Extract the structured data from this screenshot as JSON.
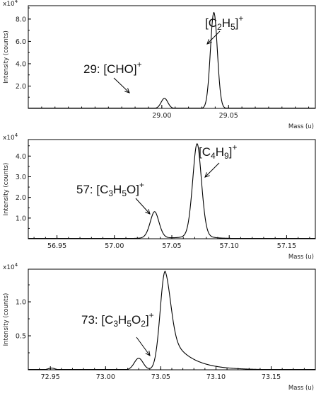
{
  "chart_data": [
    {
      "type": "line",
      "ylabel": "Intensity (counts)",
      "xlabel": "Mass (u)",
      "y_multiplier": "x10",
      "y_multiplier_exp": "4",
      "xlim": [
        28.9,
        29.115
      ],
      "ylim": [
        0,
        9.2
      ],
      "x_ticks": [
        29.0,
        29.05
      ],
      "x_tick_labels": [
        "29.00",
        "29.05"
      ],
      "y_ticks": [
        2.0,
        4.0,
        6.0,
        8.0
      ],
      "y_tick_labels": [
        "2.0",
        "4.0",
        "6.0",
        "8.0"
      ],
      "peaks": [
        {
          "x": 29.002,
          "y": 0.9,
          "width": 0.0025,
          "label_prefix": "29: ",
          "label_parts": [
            [
              "[CHO]",
              ""
            ],
            [
              "+",
              "sup"
            ]
          ]
        },
        {
          "x": 29.039,
          "y": 8.6,
          "width": 0.0026,
          "label_prefix": "",
          "label_parts": [
            [
              "[C",
              ""
            ],
            [
              "2",
              "sub"
            ],
            [
              "H",
              ""
            ],
            [
              "5",
              "sub"
            ],
            [
              "]",
              ""
            ],
            [
              "+",
              "sup"
            ]
          ]
        }
      ]
    },
    {
      "type": "line",
      "ylabel": "Intensity (counts)",
      "xlabel": "Mass (u)",
      "y_multiplier": "x10",
      "y_multiplier_exp": "4",
      "xlim": [
        56.925,
        57.175
      ],
      "ylim": [
        0,
        4.8
      ],
      "x_ticks": [
        56.95,
        57.0,
        57.05,
        57.1,
        57.15
      ],
      "x_tick_labels": [
        "56.95",
        "57.00",
        "57.05",
        "57.10",
        "57.15"
      ],
      "y_ticks": [
        1.0,
        2.0,
        3.0,
        4.0
      ],
      "y_tick_labels": [
        "1.0",
        "2.0",
        "3.0",
        "4.0"
      ],
      "peaks": [
        {
          "x": 57.035,
          "y": 1.3,
          "width": 0.004,
          "label_prefix": "57: ",
          "label_parts": [
            [
              "[C",
              ""
            ],
            [
              "3",
              "sub"
            ],
            [
              "H",
              ""
            ],
            [
              "5",
              "sub"
            ],
            [
              "O]",
              ""
            ],
            [
              "+",
              "sup"
            ]
          ]
        },
        {
          "x": 57.072,
          "y": 4.6,
          "width": 0.004,
          "label_prefix": "",
          "label_parts": [
            [
              "[C",
              ""
            ],
            [
              "4",
              "sub"
            ],
            [
              "H",
              ""
            ],
            [
              "9",
              "sub"
            ],
            [
              "]",
              ""
            ],
            [
              "+",
              "sup"
            ]
          ]
        }
      ]
    },
    {
      "type": "line",
      "ylabel": "Intensity (counts)",
      "xlabel": "Mass (u)",
      "y_multiplier": "x10",
      "y_multiplier_exp": "4",
      "xlim": [
        72.93,
        73.19
      ],
      "ylim": [
        0,
        1.48
      ],
      "x_ticks": [
        72.95,
        73.0,
        73.05,
        73.1,
        73.15
      ],
      "x_tick_labels": [
        "72.95",
        "73.00",
        "73.05",
        "73.10",
        "73.15"
      ],
      "y_ticks": [
        0.5,
        1.0
      ],
      "y_tick_labels": [
        "0.5",
        "1.0"
      ],
      "peaks": [
        {
          "x": 72.951,
          "y": 0.025,
          "width": 0.003,
          "label_prefix": "",
          "label_parts": []
        },
        {
          "x": 73.03,
          "y": 0.17,
          "width": 0.004,
          "label_prefix": "73: ",
          "label_parts": [
            [
              "[C",
              ""
            ],
            [
              "3",
              "sub"
            ],
            [
              "H",
              ""
            ],
            [
              "5",
              "sub"
            ],
            [
              "O",
              ""
            ],
            [
              "2",
              "sub"
            ],
            [
              "]",
              ""
            ],
            [
              "+",
              "sup"
            ]
          ]
        },
        {
          "x": 73.054,
          "y": 1.45,
          "width": 0.006,
          "label_prefix": "",
          "label_parts": []
        }
      ]
    }
  ]
}
